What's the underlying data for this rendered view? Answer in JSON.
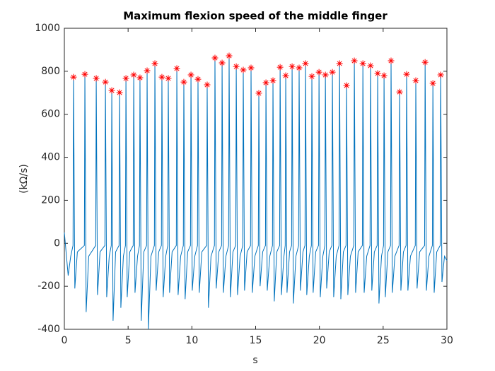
{
  "chart_data": {
    "type": "line",
    "title": "Maximum flexion speed of the middle finger",
    "xlabel": "s",
    "ylabel": "(kΩ/s)",
    "xlim": [
      0,
      30
    ],
    "xticks": [
      0,
      5,
      10,
      15,
      20,
      25,
      30
    ],
    "ylim": [
      -400,
      1000
    ],
    "yticks": [
      -400,
      -200,
      0,
      200,
      400,
      600,
      800,
      1000
    ],
    "box": true,
    "series": [
      {
        "color": "#0072bd",
        "marker": "none",
        "x": [
          0,
          0.3,
          0.5,
          0.68,
          0.72,
          0.82,
          1.02,
          1.57,
          1.61,
          1.71,
          1.91,
          2.46,
          2.5,
          2.6,
          2.8,
          3.18,
          3.22,
          3.32,
          3.52,
          3.68,
          3.72,
          3.82,
          4.02,
          4.29,
          4.33,
          4.43,
          4.63,
          4.79,
          4.83,
          4.93,
          5.13,
          5.4,
          5.44,
          5.54,
          5.74,
          5.89,
          5.93,
          6.03,
          6.23,
          6.45,
          6.49,
          6.59,
          6.79,
          7.06,
          7.1,
          7.2,
          7.4,
          7.61,
          7.65,
          7.75,
          7.95,
          8.11,
          8.15,
          8.25,
          8.45,
          8.78,
          8.82,
          8.92,
          9.12,
          9.33,
          9.37,
          9.47,
          9.67,
          9.89,
          9.93,
          10.03,
          10.23,
          10.44,
          10.48,
          10.58,
          10.78,
          11.16,
          11.2,
          11.3,
          11.5,
          11.77,
          11.81,
          11.91,
          12.11,
          12.33,
          12.37,
          12.47,
          12.67,
          12.88,
          12.92,
          13.02,
          13.22,
          13.44,
          13.48,
          13.58,
          13.78,
          13.99,
          14.03,
          14.13,
          14.33,
          14.6,
          14.64,
          14.74,
          14.94,
          15.21,
          15.25,
          15.35,
          15.55,
          15.77,
          15.81,
          15.91,
          16.11,
          16.32,
          16.36,
          16.46,
          16.66,
          16.88,
          16.92,
          17.02,
          17.22,
          17.32,
          17.36,
          17.46,
          17.66,
          17.82,
          17.86,
          17.96,
          18.16,
          18.37,
          18.41,
          18.51,
          18.71,
          18.87,
          18.91,
          19.01,
          19.21,
          19.37,
          19.41,
          19.51,
          19.71,
          19.93,
          19.97,
          20.07,
          20.27,
          20.43,
          20.47,
          20.57,
          20.77,
          20.98,
          21.02,
          21.12,
          21.32,
          21.54,
          21.58,
          21.68,
          21.88,
          22.09,
          22.13,
          22.23,
          22.43,
          22.7,
          22.74,
          22.84,
          23.04,
          23.37,
          23.41,
          23.51,
          23.71,
          23.97,
          24.01,
          24.11,
          24.31,
          24.53,
          24.57,
          24.67,
          24.87,
          25.03,
          25.07,
          25.17,
          25.37,
          25.58,
          25.62,
          25.72,
          25.92,
          26.25,
          26.29,
          26.39,
          26.59,
          26.8,
          26.84,
          26.94,
          27.14,
          27.52,
          27.56,
          27.66,
          27.86,
          28.25,
          28.29,
          28.39,
          28.59,
          28.86,
          28.9,
          29.0,
          29.2,
          29.47,
          29.51,
          29.61,
          29.81,
          30
        ],
        "values": [
          50,
          -150,
          -60,
          -10,
          773,
          -210,
          -40,
          -10,
          786,
          -320,
          -60,
          -10,
          767,
          -240,
          -40,
          -10,
          750,
          -250,
          -60,
          -10,
          711,
          -360,
          -40,
          -10,
          701,
          -300,
          -60,
          -10,
          767,
          -250,
          -40,
          -10,
          783,
          -230,
          -60,
          -10,
          770,
          -360,
          -40,
          -10,
          803,
          -400,
          -60,
          -10,
          836,
          -220,
          -40,
          -10,
          773,
          -250,
          -60,
          -10,
          767,
          -230,
          -40,
          -10,
          813,
          -240,
          -60,
          -10,
          750,
          -260,
          -40,
          -10,
          783,
          -220,
          -60,
          -10,
          763,
          -230,
          -40,
          -10,
          737,
          -300,
          -60,
          -10,
          862,
          -210,
          -40,
          -10,
          839,
          -230,
          -60,
          -10,
          872,
          -250,
          -40,
          -10,
          822,
          -240,
          -60,
          -10,
          806,
          -220,
          -40,
          -10,
          816,
          -230,
          -60,
          -10,
          698,
          -200,
          -40,
          -10,
          747,
          -220,
          -60,
          -10,
          757,
          -270,
          -40,
          -10,
          819,
          -240,
          -60,
          -10,
          780,
          -230,
          -40,
          -10,
          822,
          -280,
          -60,
          -10,
          816,
          -220,
          -40,
          -10,
          836,
          -240,
          -60,
          -10,
          776,
          -230,
          -40,
          -10,
          796,
          -250,
          -60,
          -10,
          783,
          -210,
          -40,
          -10,
          796,
          -250,
          -60,
          -10,
          836,
          -260,
          -40,
          -10,
          734,
          -240,
          -60,
          -10,
          849,
          -230,
          -40,
          -10,
          836,
          -230,
          -60,
          -10,
          826,
          -220,
          -40,
          -10,
          790,
          -280,
          -60,
          -10,
          780,
          -250,
          -40,
          -10,
          849,
          -230,
          -60,
          -10,
          704,
          -220,
          -40,
          -10,
          786,
          -220,
          -60,
          -10,
          757,
          -210,
          -40,
          -10,
          842,
          -220,
          -60,
          -10,
          744,
          -230,
          -40,
          -10,
          783,
          -180,
          -60,
          -80
        ]
      },
      {
        "color": "#ff0000",
        "marker": "*",
        "x": [
          0.72,
          1.61,
          2.5,
          3.22,
          3.72,
          4.33,
          4.83,
          5.44,
          5.93,
          6.49,
          7.1,
          7.65,
          8.15,
          8.82,
          9.37,
          9.93,
          10.48,
          11.2,
          11.81,
          12.37,
          12.92,
          13.48,
          14.03,
          14.64,
          15.25,
          15.81,
          16.36,
          16.92,
          17.36,
          17.86,
          18.41,
          18.91,
          19.41,
          19.97,
          20.47,
          21.02,
          21.58,
          22.13,
          22.74,
          23.41,
          24.01,
          24.57,
          25.07,
          25.62,
          26.29,
          26.84,
          27.56,
          28.29,
          28.9,
          29.51
        ],
        "values": [
          773,
          786,
          767,
          750,
          711,
          701,
          767,
          783,
          770,
          803,
          836,
          773,
          767,
          813,
          750,
          783,
          763,
          737,
          862,
          839,
          872,
          822,
          806,
          816,
          698,
          747,
          757,
          819,
          780,
          822,
          816,
          836,
          776,
          796,
          783,
          796,
          836,
          734,
          849,
          836,
          826,
          790,
          780,
          849,
          704,
          786,
          757,
          842,
          744,
          783
        ]
      }
    ]
  }
}
